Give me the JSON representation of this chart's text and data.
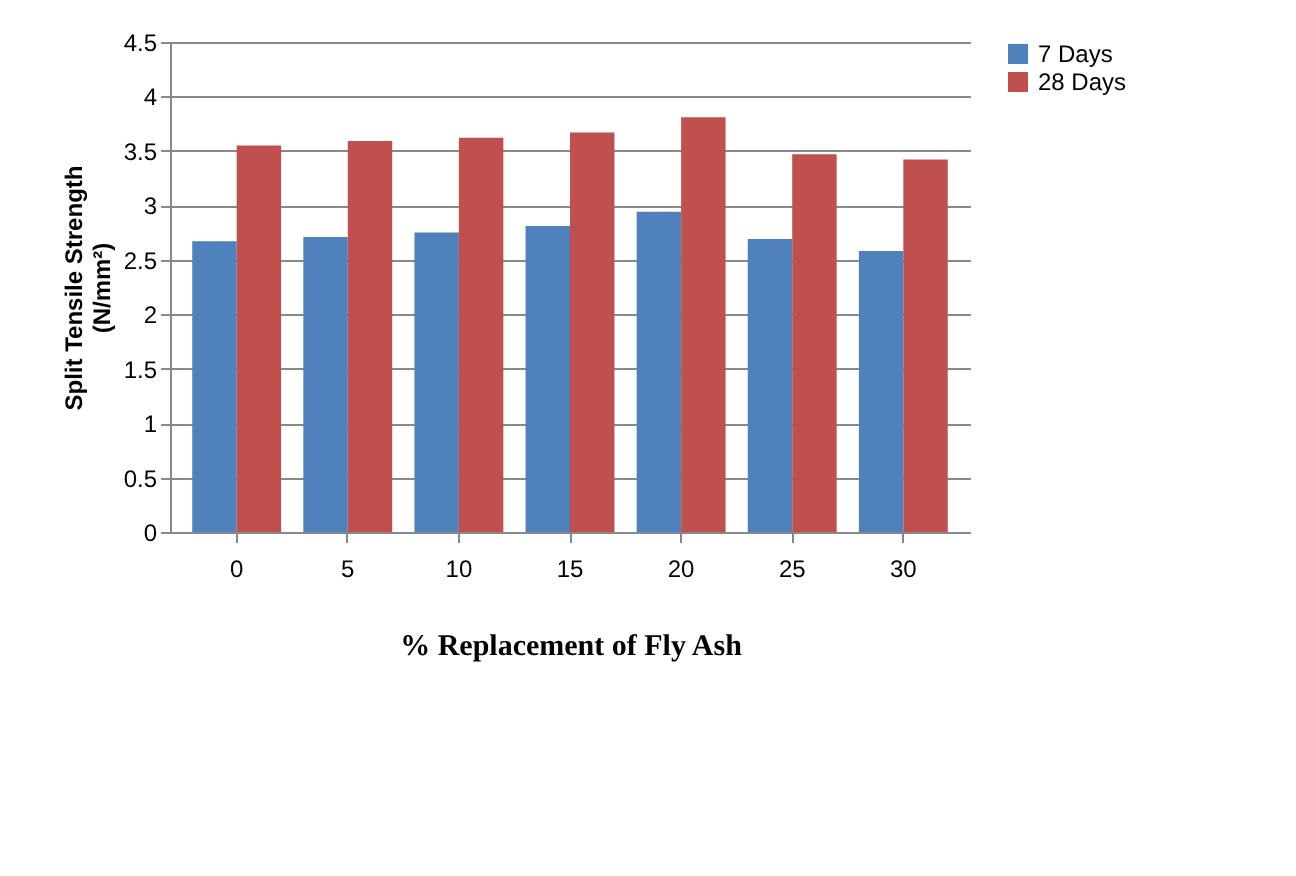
{
  "chart_data": {
    "type": "bar",
    "xlabel": "% Replacement of  Fly Ash",
    "ylabel": "Split Tensile  Strength\n(N/mm²)",
    "categories": [
      "0",
      "5",
      "10",
      "15",
      "20",
      "25",
      "30"
    ],
    "series": [
      {
        "name": "7 Days",
        "color": "#4f81bd",
        "values": [
          2.67,
          2.71,
          2.75,
          2.81,
          2.94,
          2.69,
          2.58
        ]
      },
      {
        "name": "28 Days",
        "color": "#c0504d",
        "values": [
          3.55,
          3.59,
          3.62,
          3.67,
          3.81,
          3.47,
          3.42
        ]
      }
    ],
    "ylim": [
      0,
      4.5
    ],
    "yticks": [
      0,
      0.5,
      1,
      1.5,
      2,
      2.5,
      3,
      3.5,
      4,
      4.5
    ],
    "grid": "y",
    "legend": "right"
  }
}
